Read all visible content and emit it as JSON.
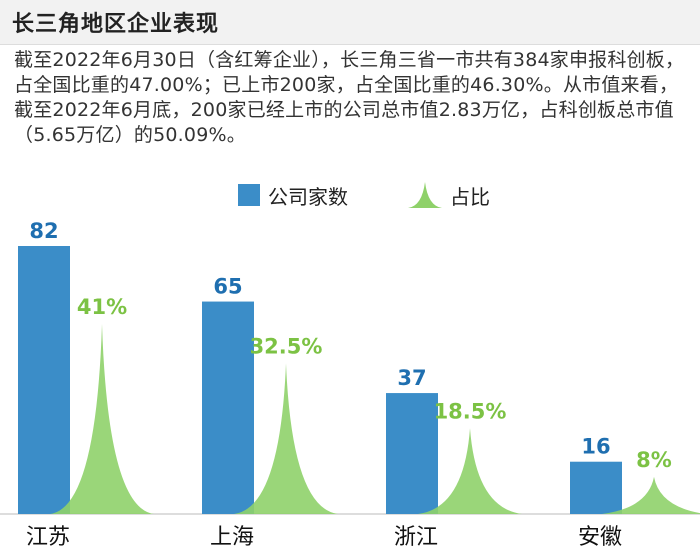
{
  "header": {
    "title": "长三角地区企业表现"
  },
  "note": "截至2022年6月30日（含红筹企业），长三角三省一市共有384家申报科创板，占全国比重的47.00%；已上市200家，占全国比重的46.30%。从市值来看，截至2022年6月底，200家已经上市的公司总市值2.83万亿，占科创板总市值（5.65万亿）的50.09%。",
  "legend": {
    "companies": "公司家数",
    "share": "占比"
  },
  "colors": {
    "bar": "#3b8dc8",
    "peak": "#8fd16a",
    "bar_label": "#1f6fb0",
    "peak_label": "#7cc244"
  },
  "chart_data": {
    "type": "bar",
    "categories": [
      "江苏",
      "上海",
      "浙江",
      "安徽"
    ],
    "series": [
      {
        "name": "公司家数",
        "values": [
          82,
          65,
          37,
          16
        ],
        "labels": [
          "82",
          "65",
          "37",
          "16"
        ]
      },
      {
        "name": "占比",
        "values": [
          41,
          32.5,
          18.5,
          8
        ],
        "labels": [
          "41%",
          "32.5%",
          "18.5%",
          "8%"
        ]
      }
    ],
    "ylim_companies": [
      0,
      82
    ],
    "ylim_share": [
      0,
      41
    ]
  }
}
